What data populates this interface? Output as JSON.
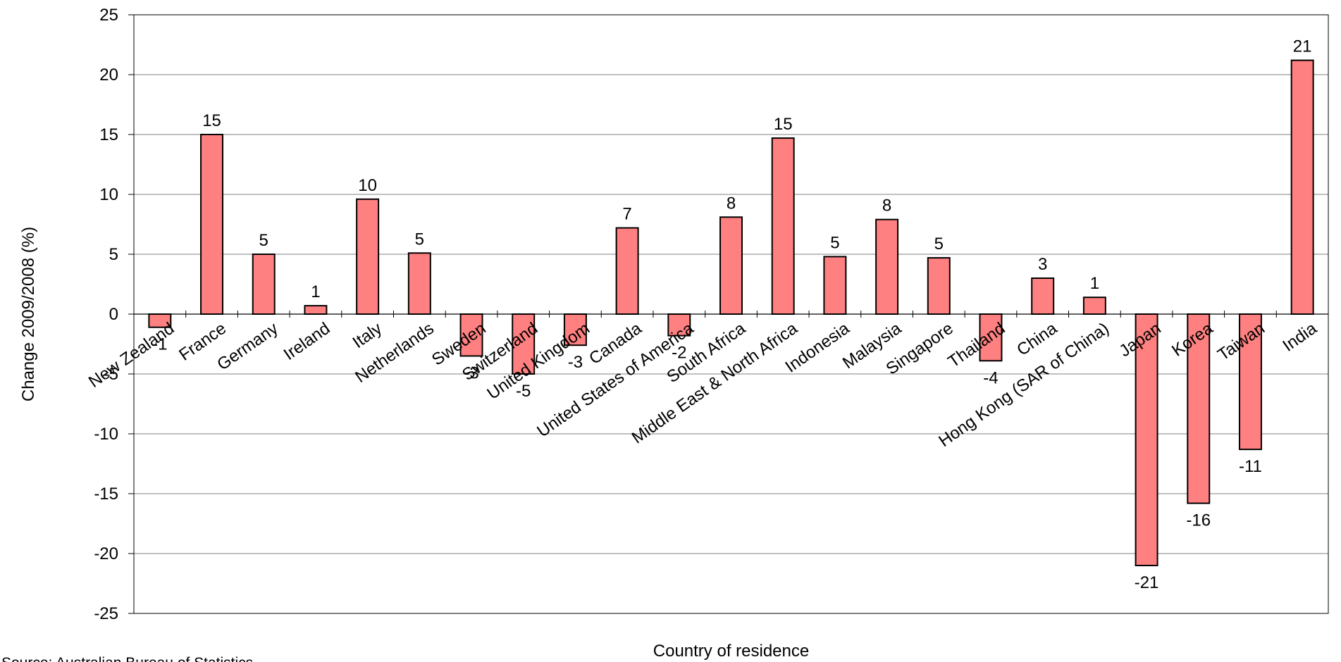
{
  "chart_data": {
    "type": "bar",
    "title": "",
    "xlabel": "Country of residence",
    "ylabel": "Change 2009/2008 (%)",
    "ylim": [
      -25,
      25
    ],
    "yticks": [
      25,
      20,
      15,
      10,
      5,
      0,
      -5,
      -10,
      -15,
      -20,
      -25
    ],
    "grid": true,
    "legend": "none",
    "bar_color": "#ff8080",
    "categories": [
      "New Zealand",
      "France",
      "Germany",
      "Ireland",
      "Italy",
      "Netherlands",
      "Sweden",
      "Switzerland",
      "United Kingdom",
      "Canada",
      "United States of America",
      "South Africa",
      "Middle East & North Africa",
      "Indonesia",
      "Malaysia",
      "Singapore",
      "Thailand",
      "China",
      "Hong Kong (SAR of China)",
      "Japan",
      "Korea",
      "Taiwan",
      "India"
    ],
    "values": [
      -1.1,
      15.0,
      5.0,
      0.7,
      9.6,
      5.1,
      -3.5,
      -5.0,
      -2.6,
      7.2,
      -1.8,
      8.1,
      14.7,
      4.8,
      7.9,
      4.7,
      -3.9,
      3.0,
      1.4,
      -21.0,
      -15.8,
      -11.3,
      21.2
    ],
    "data_labels": [
      "-1",
      "15",
      "5",
      "1",
      "10",
      "5",
      "-3",
      "-5",
      "-3",
      "7",
      "-2",
      "8",
      "15",
      "5",
      "8",
      "5",
      "-4",
      "3",
      "1",
      "-21",
      "-16",
      "-11",
      "21"
    ]
  },
  "source_note": "Source: Australian Bureau of Statistics"
}
